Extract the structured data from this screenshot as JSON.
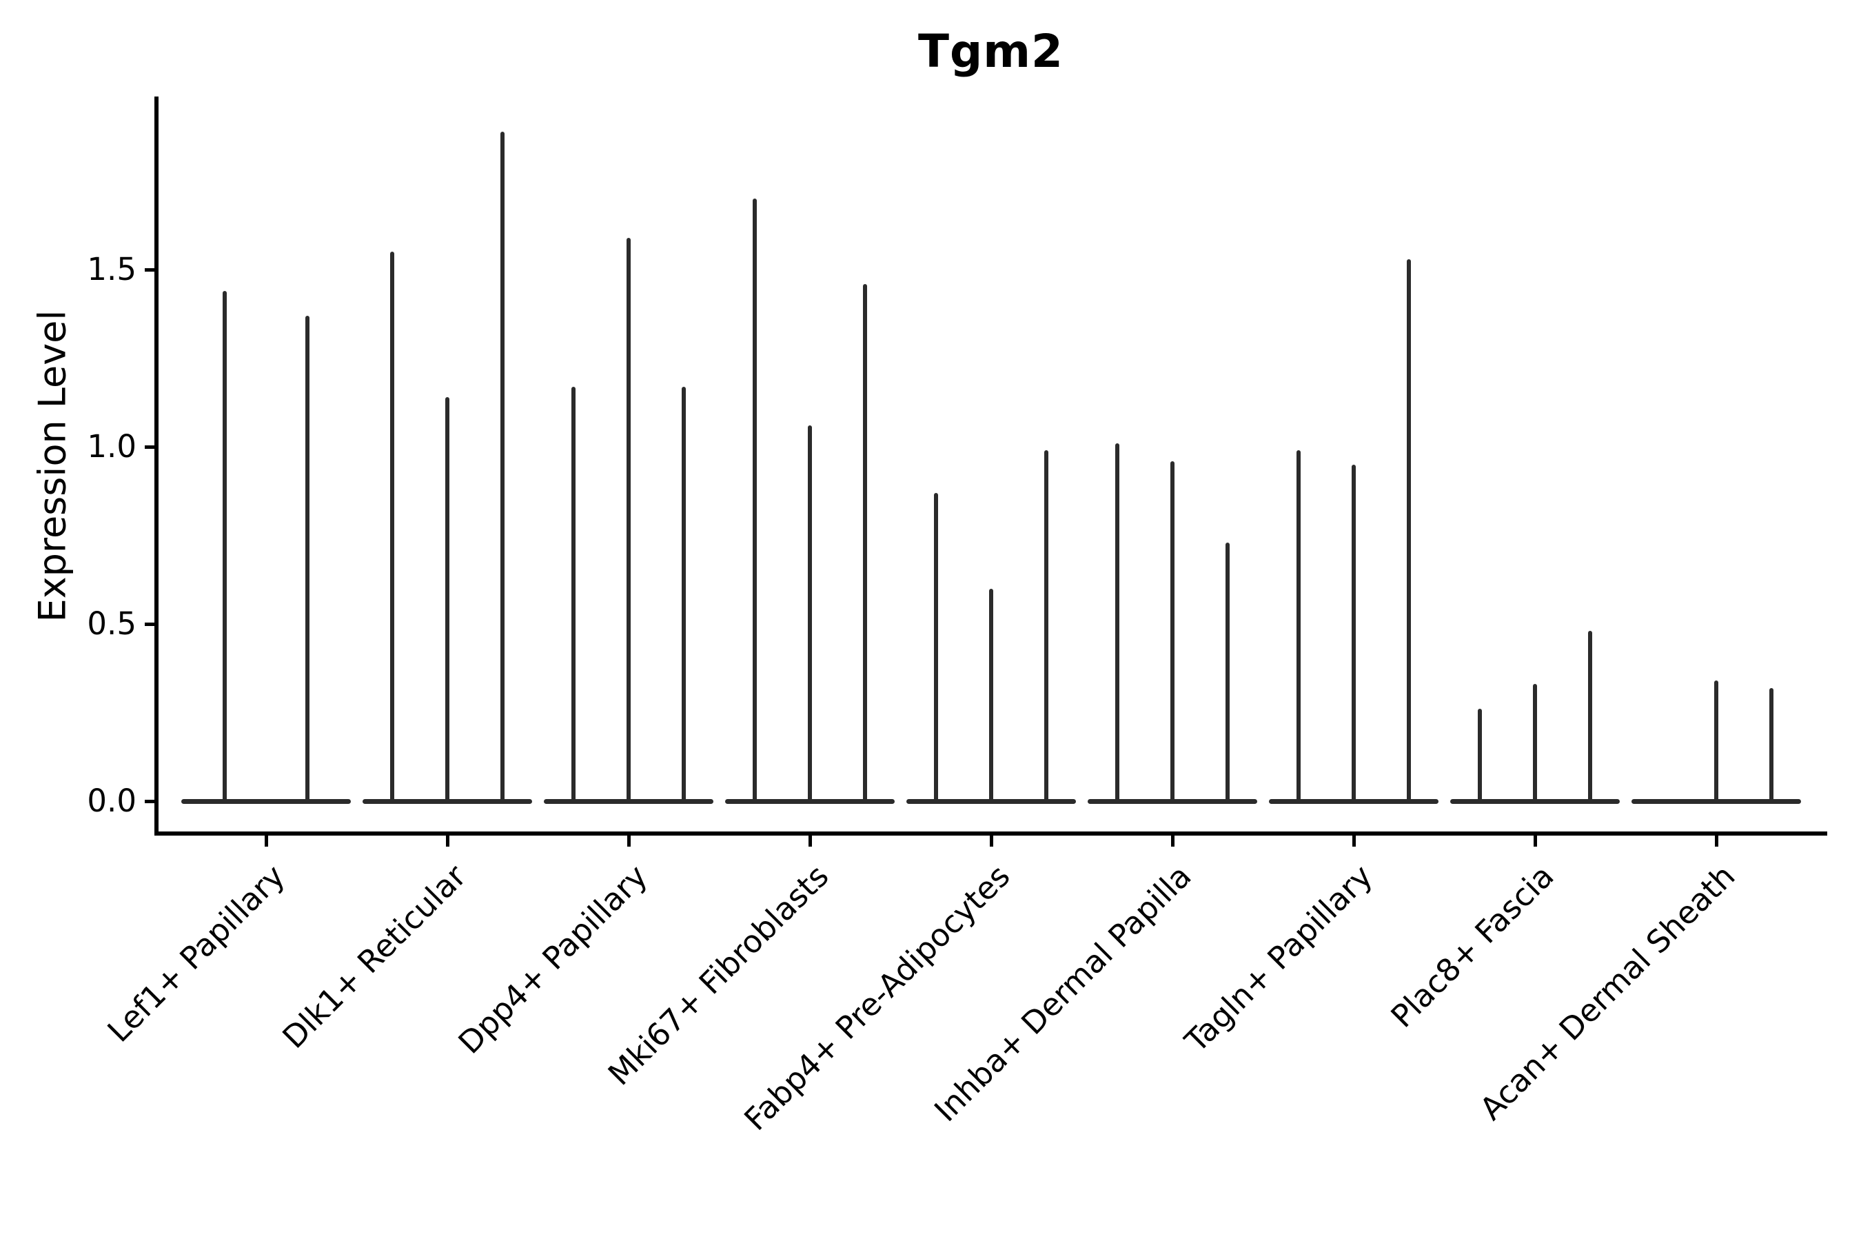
{
  "title": "Tgm2",
  "y_axis": {
    "label": "Expression Level",
    "tick_labels": [
      "0.0",
      "0.5",
      "1.0",
      "1.5"
    ],
    "tick_values": [
      0.0,
      0.5,
      1.0,
      1.5
    ]
  },
  "chart_data": {
    "type": "violin",
    "title": "Tgm2",
    "xlabel": "",
    "ylabel": "Expression Level",
    "ylim": [
      -0.1,
      2.0
    ],
    "grid": false,
    "legend": "none",
    "note": "Thin spike-like violins rising from flat baselines at 0; value listed is the top (max expression) of each violin spike; 0.0 means a flat violin with no spike",
    "categories": [
      "Lef1+ Papillary",
      "Dlk1+ Reticular",
      "Dpp4+ Papillary",
      "Mki67+ Fibroblasts",
      "Fabp4+ Pre-Adipocytes",
      "Inhba+ Dermal Papilla",
      "Tagln+ Papillary",
      "Plac8+ Fascia",
      "Acan+ Dermal Sheath"
    ],
    "violin_spike_maxima": [
      [
        1.44,
        1.37
      ],
      [
        1.55,
        1.14,
        1.89
      ],
      [
        1.17,
        1.59,
        1.17
      ],
      [
        1.7,
        1.06,
        1.46
      ],
      [
        0.87,
        0.6,
        0.99
      ],
      [
        1.01,
        0.96,
        0.73
      ],
      [
        0.99,
        0.95,
        1.53
      ],
      [
        0.26,
        0.33,
        0.48
      ],
      [
        0.0,
        0.34,
        0.32
      ]
    ]
  }
}
